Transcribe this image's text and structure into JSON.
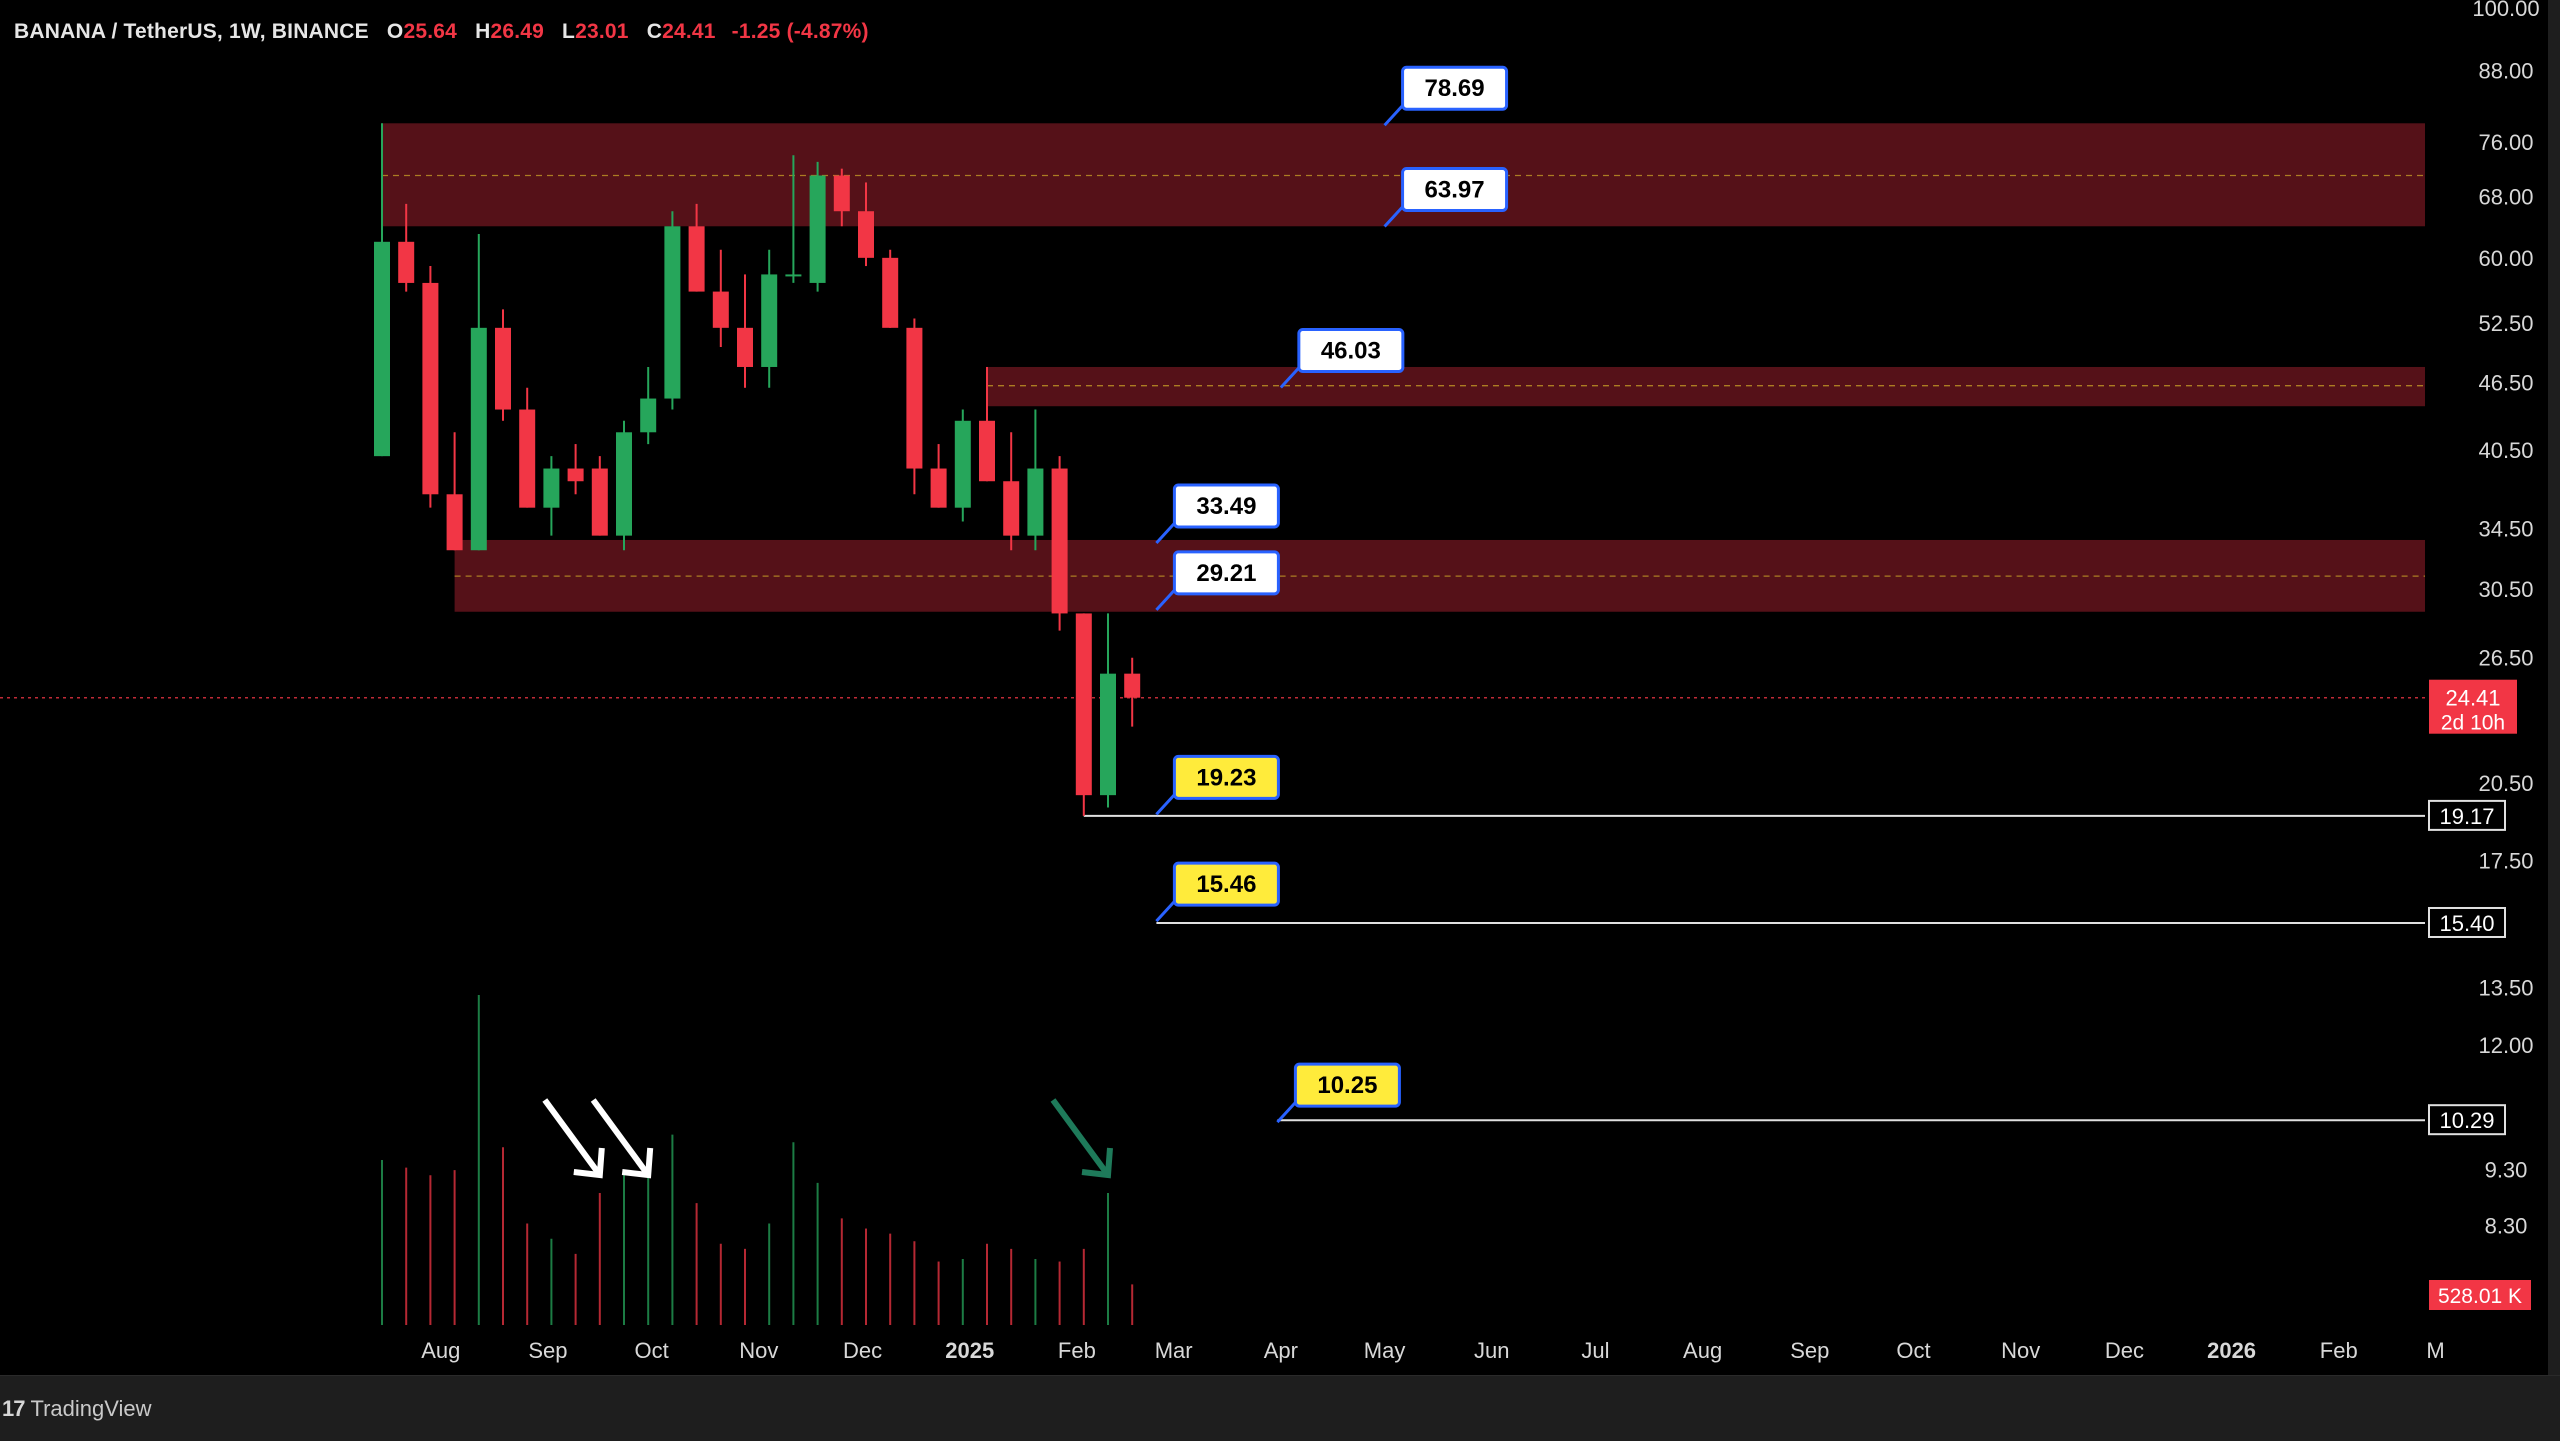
{
  "header": {
    "symbol": "BANANA / TetherUS, 1W, BINANCE",
    "o_label": "O",
    "o_value": "25.64",
    "h_label": "H",
    "h_value": "26.49",
    "l_label": "L",
    "l_value": "23.01",
    "c_label": "C",
    "c_value": "24.41",
    "change": "-1.25 (-4.87%)"
  },
  "brand": {
    "logo": "17",
    "name": "TradingView"
  },
  "colors": {
    "up": "#26a65b",
    "down": "#f23645",
    "zone": "#5a1219",
    "zone_line": "#c9a227",
    "yellow": "#ffeb3b",
    "blue": "#2962ff",
    "white_arrow": "#ffffff",
    "green_arrow": "#1e7a5a"
  },
  "chart_data": {
    "type": "candlestick",
    "title": "",
    "ylim": [
      6.5,
      100
    ],
    "y_scale": "log",
    "y_ticks": [
      100,
      88,
      76,
      68,
      60,
      52.5,
      46.5,
      40.5,
      34.5,
      30.5,
      26.5,
      20.5,
      17.5,
      13.5,
      12,
      9.3,
      8.3
    ],
    "y_tick_labels": [
      "100.00",
      "88.00",
      "76.00",
      "68.00",
      "60.00",
      "52.50",
      "46.50",
      "40.50",
      "34.50",
      "30.50",
      "26.50",
      "20.50",
      "17.50",
      "13.50",
      "12.00",
      "9.30",
      "8.30"
    ],
    "x_ticks": [
      "Aug",
      "Sep",
      "Oct",
      "Nov",
      "Dec",
      "2025",
      "Feb",
      "Mar",
      "Apr",
      "May",
      "Jun",
      "Jul",
      "Aug",
      "Sep",
      "Oct",
      "Nov",
      "Dec",
      "2026",
      "Feb",
      "M"
    ],
    "x_tick_dates": [
      "2024-08-01",
      "2024-09-01",
      "2024-10-01",
      "2024-11-01",
      "2024-12-01",
      "2025-01-01",
      "2025-02-01",
      "2025-03-01",
      "2025-04-01",
      "2025-05-01",
      "2025-06-01",
      "2025-07-01",
      "2025-08-01",
      "2025-09-01",
      "2025-10-01",
      "2025-11-01",
      "2025-12-01",
      "2026-01-01",
      "2026-02-01",
      "2026-03-01"
    ],
    "candles": [
      {
        "date": "2024-07-15",
        "o": 40,
        "h": 79,
        "l": 40,
        "c": 62
      },
      {
        "date": "2024-07-22",
        "o": 62,
        "h": 67,
        "l": 56,
        "c": 57
      },
      {
        "date": "2024-07-29",
        "o": 57,
        "h": 59,
        "l": 36,
        "c": 37
      },
      {
        "date": "2024-08-05",
        "o": 37,
        "h": 42,
        "l": 33,
        "c": 33
      },
      {
        "date": "2024-08-12",
        "o": 33,
        "h": 63,
        "l": 33,
        "c": 52
      },
      {
        "date": "2024-08-19",
        "o": 52,
        "h": 54,
        "l": 43,
        "c": 44
      },
      {
        "date": "2024-08-26",
        "o": 44,
        "h": 46,
        "l": 36,
        "c": 36
      },
      {
        "date": "2024-09-02",
        "o": 36,
        "h": 40,
        "l": 34,
        "c": 39
      },
      {
        "date": "2024-09-09",
        "o": 39,
        "h": 41,
        "l": 37,
        "c": 38
      },
      {
        "date": "2024-09-16",
        "o": 39,
        "h": 40,
        "l": 34,
        "c": 34
      },
      {
        "date": "2024-09-23",
        "o": 34,
        "h": 43,
        "l": 33,
        "c": 42
      },
      {
        "date": "2024-09-30",
        "o": 42,
        "h": 48,
        "l": 41,
        "c": 45
      },
      {
        "date": "2024-10-07",
        "o": 45,
        "h": 66,
        "l": 44,
        "c": 64
      },
      {
        "date": "2024-10-14",
        "o": 64,
        "h": 67,
        "l": 56,
        "c": 56
      },
      {
        "date": "2024-10-21",
        "o": 56,
        "h": 61,
        "l": 50,
        "c": 52
      },
      {
        "date": "2024-10-28",
        "o": 52,
        "h": 58,
        "l": 46,
        "c": 48
      },
      {
        "date": "2024-11-04",
        "o": 48,
        "h": 61,
        "l": 46,
        "c": 58
      },
      {
        "date": "2024-11-11",
        "o": 58,
        "h": 74,
        "l": 57,
        "c": 58
      },
      {
        "date": "2024-11-18",
        "o": 57,
        "h": 73,
        "l": 56,
        "c": 71
      },
      {
        "date": "2024-11-25",
        "o": 71,
        "h": 72,
        "l": 64,
        "c": 66
      },
      {
        "date": "2024-12-02",
        "o": 66,
        "h": 70,
        "l": 59,
        "c": 60
      },
      {
        "date": "2024-12-09",
        "o": 60,
        "h": 61,
        "l": 52,
        "c": 52
      },
      {
        "date": "2024-12-16",
        "o": 52,
        "h": 53,
        "l": 37,
        "c": 39
      },
      {
        "date": "2024-12-23",
        "o": 39,
        "h": 41,
        "l": 36,
        "c": 36
      },
      {
        "date": "2024-12-30",
        "o": 36,
        "h": 44,
        "l": 35,
        "c": 43
      },
      {
        "date": "2025-01-06",
        "o": 43,
        "h": 48,
        "l": 38,
        "c": 38
      },
      {
        "date": "2025-01-13",
        "o": 38,
        "h": 42,
        "l": 33,
        "c": 34
      },
      {
        "date": "2025-01-20",
        "o": 34,
        "h": 44,
        "l": 33,
        "c": 39
      },
      {
        "date": "2025-01-27",
        "o": 39,
        "h": 40,
        "l": 28,
        "c": 29
      },
      {
        "date": "2025-02-03",
        "o": 29,
        "h": 29,
        "l": 19.17,
        "c": 20
      },
      {
        "date": "2025-02-10",
        "o": 20,
        "h": 29,
        "l": 19.5,
        "c": 25.64
      },
      {
        "date": "2025-02-17",
        "o": 25.64,
        "h": 26.49,
        "l": 23.01,
        "c": 24.41
      }
    ],
    "volume_peak": 1300,
    "volume": [
      650,
      620,
      590,
      610,
      1300,
      700,
      400,
      340,
      280,
      520,
      600,
      620,
      750,
      480,
      320,
      300,
      400,
      720,
      560,
      420,
      380,
      360,
      330,
      250,
      260,
      320,
      300,
      260,
      250,
      300,
      520,
      160
    ],
    "zones": [
      {
        "top": 79,
        "bottom": 64,
        "mid": 71,
        "start": "2024-07-15"
      },
      {
        "top": 48,
        "bottom": 44.3,
        "mid": 46.2,
        "start": "2025-01-06"
      },
      {
        "top": 33.7,
        "bottom": 29.1,
        "mid": 31.3,
        "start": "2024-08-05"
      }
    ],
    "horizontal_lines": [
      {
        "value": 19.17,
        "label": "19.17",
        "start": "2025-02-03"
      },
      {
        "value": 15.4,
        "label": "15.40",
        "start": "2025-02-24"
      },
      {
        "value": 10.29,
        "label": "10.29",
        "start": "2025-03-31"
      }
    ],
    "callouts": [
      {
        "label": "78.69",
        "style": "white",
        "anchor_date": "2025-05-01",
        "anchor_value": 78.69
      },
      {
        "label": "63.97",
        "style": "white",
        "anchor_date": "2025-05-01",
        "anchor_value": 63.97
      },
      {
        "label": "46.03",
        "style": "white",
        "anchor_date": "2025-04-01",
        "anchor_value": 46.03
      },
      {
        "label": "33.49",
        "style": "white",
        "anchor_date": "2025-02-24",
        "anchor_value": 33.49
      },
      {
        "label": "29.21",
        "style": "white",
        "anchor_date": "2025-02-24",
        "anchor_value": 29.21
      },
      {
        "label": "19.23",
        "style": "yellow",
        "anchor_date": "2025-02-24",
        "anchor_value": 19.23
      },
      {
        "label": "15.46",
        "style": "yellow",
        "anchor_date": "2025-02-24",
        "anchor_value": 15.46
      },
      {
        "label": "10.25",
        "style": "yellow",
        "anchor_date": "2025-03-31",
        "anchor_value": 10.25
      }
    ],
    "last_price": {
      "value": 24.41,
      "label": "24.41",
      "countdown": "2d 10h"
    },
    "volume_badge": "528.01 K",
    "annotations": [
      {
        "type": "arrow",
        "color": "white",
        "points_to": "2024-09-16"
      },
      {
        "type": "arrow",
        "color": "white",
        "points_to": "2024-09-30"
      },
      {
        "type": "arrow",
        "color": "green",
        "points_to": "2025-02-10"
      }
    ]
  }
}
